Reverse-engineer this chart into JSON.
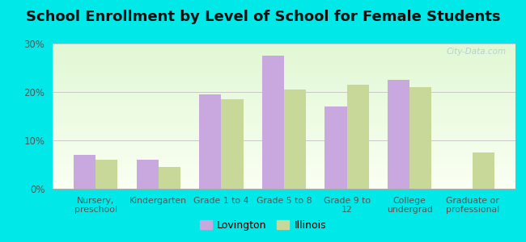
{
  "title": "School Enrollment by Level of School for Female Students",
  "categories": [
    "Nursery,\npreschool",
    "Kindergarten",
    "Grade 1 to 4",
    "Grade 5 to 8",
    "Grade 9 to\n12",
    "College\nundergrad",
    "Graduate or\nprofessional"
  ],
  "lovington_values": [
    7.0,
    6.0,
    19.5,
    27.5,
    17.0,
    22.5,
    0.0
  ],
  "illinois_values": [
    6.0,
    4.5,
    18.5,
    20.5,
    21.5,
    21.0,
    7.5
  ],
  "lovington_color": "#c9a8e0",
  "illinois_color": "#c8d898",
  "ylim": [
    0,
    30
  ],
  "yticks": [
    0,
    10,
    20,
    30
  ],
  "ytick_labels": [
    "0%",
    "10%",
    "20%",
    "30%"
  ],
  "background_outer": "#00e8e8",
  "grid_color": "#c8c8c8",
  "title_fontsize": 13,
  "legend_labels": [
    "Lovington",
    "Illinois"
  ],
  "watermark": "City-Data.com"
}
